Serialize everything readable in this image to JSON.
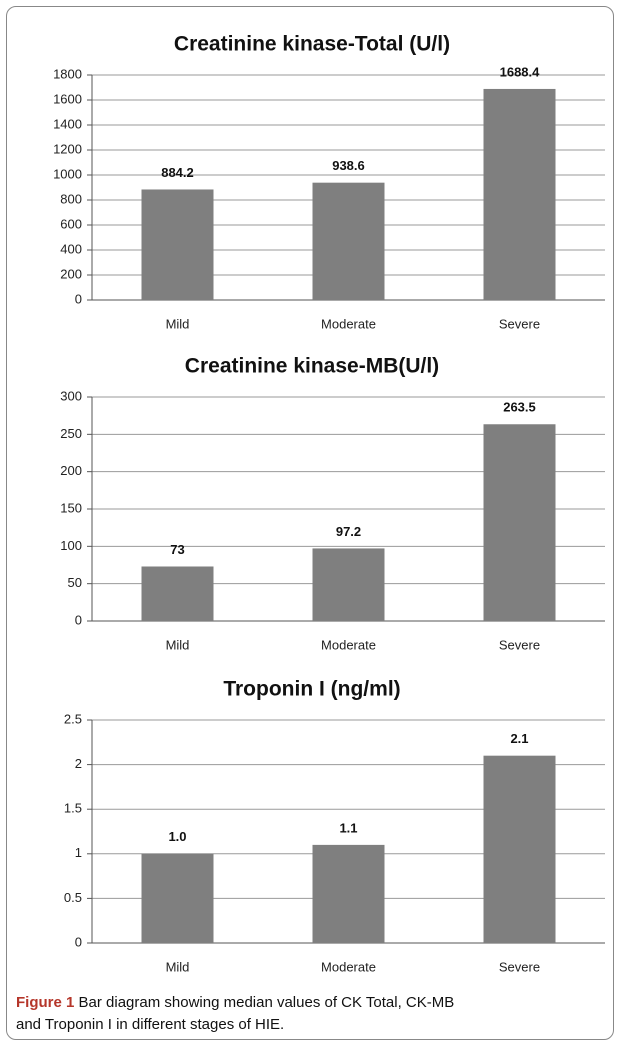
{
  "chart_data": [
    {
      "type": "bar",
      "title": "Creatinine kinase-Total (U/l)",
      "categories": [
        "Mild",
        "Moderate",
        "Severe"
      ],
      "values": [
        884.2,
        938.6,
        1688.4
      ],
      "color": "#7f7f7f",
      "ylim": [
        0,
        1800
      ],
      "yticks": [
        0,
        200,
        400,
        600,
        800,
        1000,
        1200,
        1400,
        1600,
        1800
      ],
      "grid": true
    },
    {
      "type": "bar",
      "title": "Creatinine kinase-MB(U/l)",
      "categories": [
        "Mild",
        "Moderate",
        "Severe"
      ],
      "values": [
        73,
        97.2,
        263.5
      ],
      "color": "#7f7f7f",
      "ylim": [
        0,
        300
      ],
      "yticks": [
        0,
        50,
        100,
        150,
        200,
        250,
        300
      ],
      "grid": true
    },
    {
      "type": "bar",
      "title": "Troponin I (ng/ml)",
      "categories": [
        "Mild",
        "Moderate",
        "Severe"
      ],
      "values": [
        1.0,
        1.1,
        2.1
      ],
      "value_labels": [
        "1.0",
        "1.1",
        "2.1"
      ],
      "color": "#7f7f7f",
      "ylim": [
        0,
        2.5
      ],
      "yticks": [
        0,
        0.5,
        1,
        1.5,
        2,
        2.5
      ],
      "grid": true
    }
  ],
  "caption": {
    "label": "Figure 1",
    "text": "Bar diagram showing median values of CK Total, CK-MB and Troponin I in different stages of HIE."
  }
}
